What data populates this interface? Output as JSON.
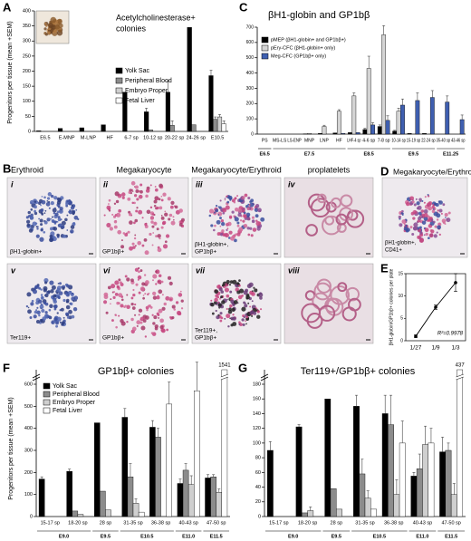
{
  "panel_letters": [
    "A",
    "B",
    "C",
    "D",
    "E",
    "F",
    "G"
  ],
  "chart_data": [
    {
      "type": "bar",
      "title": [
        "Acetylcholinesterase+",
        "colonies"
      ],
      "y_label": "Progenitors per tissue (mean +SEM)",
      "categories": [
        "E6.5",
        "E-MNP",
        "M-LNP",
        "HF",
        "6-7 sp",
        "10-12 sp",
        "20-22 sp",
        "24-26 sp",
        "E10.5"
      ],
      "series": [
        {
          "name": "Yolk Sac",
          "color": "#000000",
          "values": [
            2,
            10,
            12,
            22,
            130,
            65,
            130,
            345,
            185
          ],
          "errors": [
            null,
            null,
            null,
            null,
            null,
            12,
            38,
            null,
            18
          ]
        },
        {
          "name": "Peripheral Blood",
          "color": "#8c8c8c",
          "values": [
            0,
            0,
            0,
            0,
            0,
            5,
            20,
            22,
            40
          ],
          "errors": [
            null,
            null,
            null,
            null,
            null,
            null,
            15,
            null,
            8
          ]
        },
        {
          "name": "Embryo Proper",
          "color": "#cfcfcf",
          "values": [
            0,
            0,
            0,
            0,
            0,
            0,
            0,
            0,
            48
          ],
          "errors": [
            null,
            null,
            null,
            null,
            null,
            null,
            null,
            null,
            8
          ]
        },
        {
          "name": "Fetal Liver",
          "color": "#ffffff",
          "values": [
            null,
            null,
            null,
            null,
            null,
            null,
            null,
            null,
            25
          ],
          "errors": [
            null,
            null,
            null,
            null,
            null,
            null,
            null,
            null,
            10
          ]
        }
      ],
      "ylim": [
        0,
        400
      ],
      "yticks": [
        0,
        50,
        100,
        150,
        200,
        250,
        300,
        350,
        400
      ],
      "legend": "right"
    },
    {
      "type": "bar",
      "title": "βH1-globin and GP1bβ",
      "categories": [
        "PS",
        "MS-LS",
        "LS-ENP",
        "MNP",
        "LNP",
        "HF",
        "LHF-4 sp",
        "4-6 sp",
        "7-8 sp",
        "10-14 sp",
        "15-19 sp",
        "22-24 sp",
        "35-40 sp",
        "43-46 sp"
      ],
      "stages": [
        "E6.5",
        "E7.5",
        "E8.5",
        "E9.5",
        "E11.25"
      ],
      "series": [
        {
          "name": "pMEP (βH1-globin+ and GP1bβ+)",
          "color": "#000000",
          "values": [
            0,
            0,
            0,
            2,
            5,
            8,
            10,
            30,
            50,
            20,
            5,
            5,
            0,
            0
          ],
          "errors": [
            null,
            null,
            null,
            null,
            null,
            null,
            null,
            8,
            10,
            5,
            null,
            null,
            null,
            null
          ]
        },
        {
          "name": "pEry-CFC (βH1-globin+ only)",
          "color": "#d4d4d4",
          "values": [
            0,
            0,
            0,
            5,
            50,
            150,
            250,
            430,
            650,
            150,
            0,
            0,
            0,
            0
          ],
          "errors": [
            null,
            null,
            null,
            null,
            8,
            10,
            20,
            80,
            60,
            20,
            null,
            null,
            null,
            null
          ]
        },
        {
          "name": "Meg-CFC (GP1bβ+ only)",
          "color": "#3f5fb0",
          "values": [
            0,
            0,
            0,
            0,
            0,
            5,
            10,
            60,
            90,
            190,
            220,
            240,
            210,
            95
          ],
          "errors": [
            null,
            null,
            null,
            null,
            null,
            null,
            null,
            15,
            30,
            40,
            50,
            45,
            40,
            30
          ]
        }
      ],
      "ylim": [
        0,
        700
      ],
      "yticks": [
        0,
        100,
        200,
        300,
        400,
        500,
        600,
        700
      ],
      "legend": "upper left"
    },
    {
      "type": "line",
      "y_label": "βH1-globin/GP1bβ+ colonies per plate",
      "categories": [
        "1/27",
        "1/9",
        "1/3"
      ],
      "values": [
        1,
        7.5,
        13
      ],
      "errors": [
        0.3,
        0.5,
        2
      ],
      "ylim": [
        0,
        15
      ],
      "yticks": [
        0,
        5,
        10,
        15
      ],
      "annotation": "R²=0.9978"
    },
    {
      "type": "bar",
      "title": "GP1bβ+ colonies",
      "y_label": "Progenitors per tissue (mean +SEM)",
      "categories": [
        "15-17 sp",
        "18-20 sp",
        "28 sp",
        "31-35 sp",
        "36-38 sp",
        "40-43 sp",
        "47-50 sp"
      ],
      "stages": [
        "E9.0",
        "E9.5",
        "E10.5",
        "E11.0",
        "E11.5"
      ],
      "series": [
        {
          "name": "Yolk Sac",
          "color": "#000000",
          "values": [
            170,
            205,
            425,
            450,
            405,
            150,
            175
          ],
          "errors": [
            10,
            10,
            null,
            40,
            30,
            20,
            15
          ]
        },
        {
          "name": "Peripheral Blood",
          "color": "#8c8c8c",
          "values": [
            0,
            25,
            115,
            180,
            360,
            210,
            180
          ],
          "errors": [
            null,
            null,
            null,
            60,
            40,
            30,
            10
          ]
        },
        {
          "name": "Embryo Proper",
          "color": "#cfcfcf",
          "values": [
            0,
            10,
            30,
            60,
            0,
            145,
            110
          ],
          "errors": [
            null,
            null,
            null,
            20,
            null,
            40,
            15
          ]
        },
        {
          "name": "Fetal Liver",
          "color": "#ffffff",
          "values": [
            null,
            null,
            null,
            20,
            510,
            570,
            1541
          ],
          "errors": [
            null,
            null,
            null,
            null,
            100,
            130,
            null
          ]
        }
      ],
      "ylim": [
        0,
        600
      ],
      "yticks": [
        0,
        100,
        200,
        300,
        400,
        500,
        600
      ],
      "legend": "upper left",
      "axis_break": true
    },
    {
      "type": "bar",
      "title": "Ter119+/GP1bβ+ colonies",
      "categories": [
        "15-17 sp",
        "18-20 sp",
        "28 sp",
        "31-35 sp",
        "36-38 sp",
        "40-43 sp",
        "47-50 sp"
      ],
      "stages": [
        "E9.0",
        "E9.5",
        "E10.5",
        "E11.0",
        "E11.5"
      ],
      "series": [
        {
          "name": "Yolk Sac",
          "color": "#000000",
          "values": [
            90,
            122,
            160,
            150,
            140,
            55,
            88
          ],
          "errors": [
            12,
            3,
            null,
            15,
            25,
            5,
            20
          ]
        },
        {
          "name": "Peripheral Blood",
          "color": "#8c8c8c",
          "values": [
            0,
            5,
            38,
            58,
            125,
            65,
            90
          ],
          "errors": [
            null,
            null,
            null,
            20,
            40,
            20,
            10
          ]
        },
        {
          "name": "Embryo Proper",
          "color": "#cfcfcf",
          "values": [
            0,
            8,
            10,
            25,
            30,
            98,
            30
          ],
          "errors": [
            null,
            5,
            null,
            10,
            20,
            25,
            15
          ]
        },
        {
          "name": "Fetal Liver",
          "color": "#ffffff",
          "values": [
            null,
            null,
            null,
            10,
            100,
            100,
            437
          ],
          "errors": [
            null,
            null,
            null,
            null,
            30,
            20,
            null
          ]
        }
      ],
      "ylim": [
        0,
        180
      ],
      "yticks": [
        0,
        20,
        40,
        60,
        80,
        100,
        120,
        140,
        160,
        180
      ],
      "axis_break": true
    }
  ],
  "panel_b": {
    "columns": [
      "Erythroid",
      "Megakaryocyte",
      "Megakaryocyte/Erythroid",
      "proplatelets"
    ],
    "tiles": [
      {
        "numeral": "i",
        "caption": [
          "βH1-globin+"
        ]
      },
      {
        "numeral": "ii",
        "caption": [
          "GP1bβ+"
        ]
      },
      {
        "numeral": "iii",
        "caption": [
          "βH1-globin+,",
          "GP1bβ+"
        ]
      },
      {
        "numeral": "iv",
        "caption": []
      },
      {
        "numeral": "v",
        "caption": [
          "Ter119+"
        ]
      },
      {
        "numeral": "vi",
        "caption": [
          "GP1bβ+"
        ]
      },
      {
        "numeral": "vii",
        "caption": [
          "Ter119+,",
          "GP1bβ+"
        ]
      },
      {
        "numeral": "viii",
        "caption": []
      }
    ]
  },
  "panel_d": {
    "title": "Megakaryocyte/Erythroid",
    "caption": [
      "βH1-globin+,",
      "CD41+"
    ]
  }
}
